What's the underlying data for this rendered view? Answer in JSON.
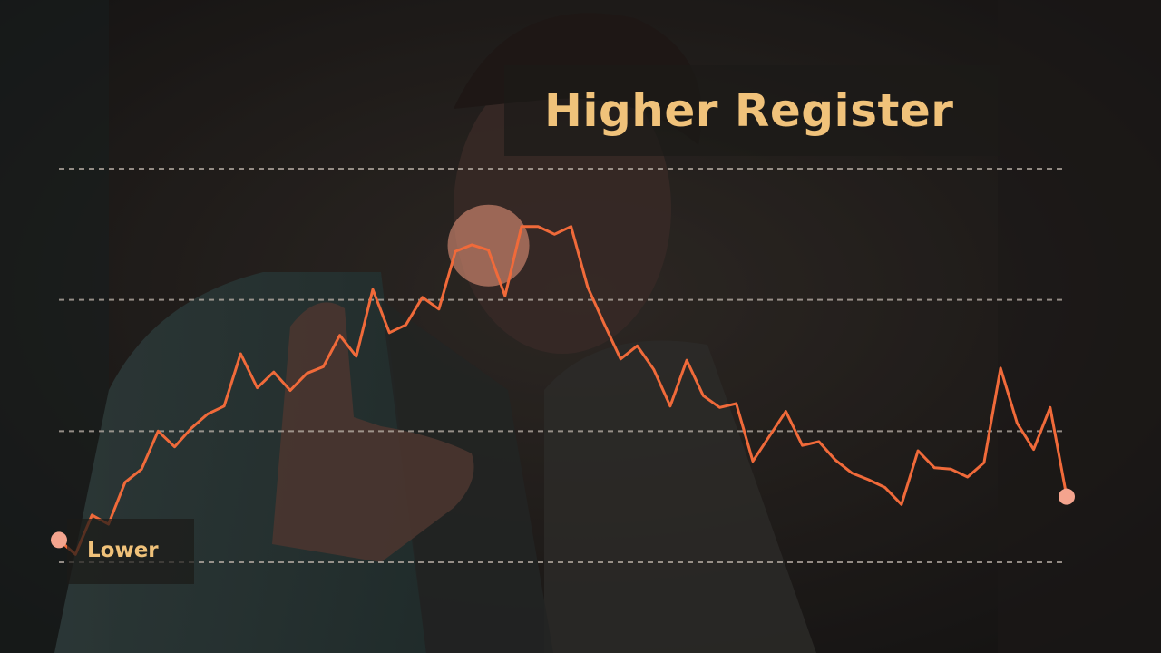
{
  "labels": {
    "high": "Higher Register",
    "low": "Lower"
  },
  "colors": {
    "line": "#f06a3a",
    "endpoint": "#f4a48e",
    "highlight": "#f09a80",
    "label_text": "#f0c27a",
    "gridline": "#bdb3aa"
  },
  "chart_data": {
    "type": "line",
    "ylim": [
      0,
      3
    ],
    "gridlines": [
      0,
      1,
      2,
      3
    ],
    "grid_style": "dashed",
    "axes_visible": false,
    "highlight_index": 26,
    "series": [
      {
        "x": [
          0,
          1,
          2,
          3,
          4,
          5,
          6,
          7,
          8,
          9,
          10,
          11,
          12,
          13,
          14,
          15,
          16,
          17,
          18,
          19,
          20,
          21,
          22,
          23,
          24,
          25,
          26,
          27,
          28,
          29,
          30,
          31,
          32,
          33,
          34,
          35,
          36,
          37,
          38,
          39,
          40,
          41,
          42,
          43,
          44,
          45,
          46,
          47,
          48,
          49,
          50,
          51,
          52,
          53,
          54,
          55,
          56,
          57,
          58,
          59,
          60,
          61
        ],
        "y": [
          0.17,
          0.06,
          0.36,
          0.29,
          0.61,
          0.71,
          1.0,
          0.88,
          1.02,
          1.13,
          1.19,
          1.59,
          1.33,
          1.45,
          1.31,
          1.44,
          1.49,
          1.73,
          1.57,
          2.08,
          1.75,
          1.81,
          2.02,
          1.93,
          2.37,
          2.42,
          2.38,
          2.03,
          2.56,
          2.56,
          2.5,
          2.56,
          2.1,
          1.82,
          1.55,
          1.65,
          1.47,
          1.19,
          1.54,
          1.27,
          1.18,
          1.21,
          0.77,
          0.96,
          1.15,
          0.89,
          0.92,
          0.78,
          0.68,
          0.63,
          0.57,
          0.44,
          0.85,
          0.72,
          0.71,
          0.65,
          0.76,
          1.48,
          1.06,
          0.86,
          1.18,
          0.5
        ]
      }
    ]
  }
}
